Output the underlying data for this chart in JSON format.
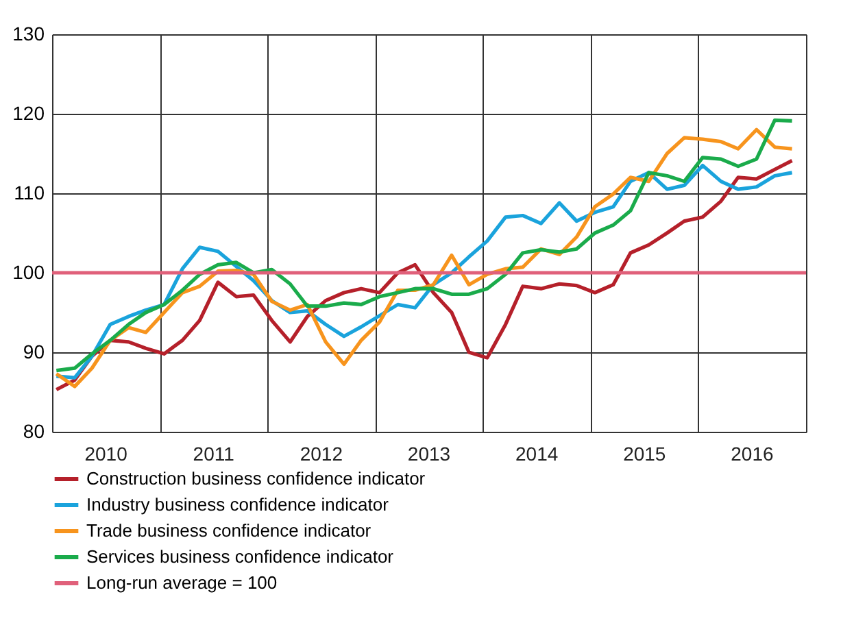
{
  "chart_data": {
    "type": "line",
    "x": [
      2010.04,
      2010.21,
      2010.37,
      2010.54,
      2010.71,
      2010.87,
      2011.04,
      2011.21,
      2011.37,
      2011.54,
      2011.71,
      2011.87,
      2012.04,
      2012.21,
      2012.37,
      2012.54,
      2012.71,
      2012.87,
      2013.04,
      2013.21,
      2013.37,
      2013.54,
      2013.71,
      2013.87,
      2014.04,
      2014.21,
      2014.37,
      2014.54,
      2014.71,
      2014.87,
      2015.04,
      2015.21,
      2015.37,
      2015.54,
      2015.71,
      2015.87,
      2016.04,
      2016.21,
      2016.37,
      2016.54,
      2016.71,
      2016.87
    ],
    "series": [
      {
        "name": "Construction business confidence indicator",
        "color": "#b5202a",
        "values": [
          85.3,
          86.5,
          89.5,
          91.5,
          91.3,
          90.5,
          89.8,
          91.5,
          94,
          98.8,
          97,
          97.2,
          94,
          91.3,
          94.5,
          96.5,
          97.5,
          98,
          97.5,
          100,
          101,
          97.5,
          95,
          90,
          89.3,
          93.5,
          98.3,
          98,
          98.6,
          98.4,
          97.5,
          98.5,
          102.5,
          103.5,
          105,
          106.5,
          107,
          109,
          112,
          111.8,
          113,
          114.1
        ]
      },
      {
        "name": "Industry business confidence indicator",
        "color": "#1aa3dc",
        "values": [
          87,
          86.8,
          89.5,
          93.5,
          94.5,
          95.3,
          96,
          100.5,
          103.2,
          102.7,
          100.8,
          99,
          96.5,
          95,
          95.2,
          93.5,
          92,
          93.2,
          94.6,
          96,
          95.6,
          98.5,
          100,
          102,
          104,
          107,
          107.2,
          106.2,
          108.8,
          106.5,
          107.6,
          108.3,
          111.5,
          112.6,
          110.5,
          111,
          113.5,
          111.5,
          110.5,
          110.8,
          112.2,
          112.6
        ]
      },
      {
        "name": "Trade business confidence indicator",
        "color": "#f7941d",
        "values": [
          87.3,
          85.7,
          88,
          91.5,
          93.1,
          92.5,
          95,
          97.5,
          98.3,
          100.2,
          100.3,
          99.8,
          96.4,
          95.3,
          96,
          91.3,
          88.5,
          91.5,
          93.8,
          97.8,
          97.8,
          98.5,
          102.2,
          98.5,
          99.8,
          100.5,
          100.7,
          103,
          102.3,
          104.5,
          108.3,
          109.9,
          112,
          111.5,
          115,
          117,
          116.8,
          116.5,
          115.6,
          118,
          115.8,
          115.6
        ]
      },
      {
        "name": "Services business confidence indicator",
        "color": "#1aab4b",
        "values": [
          87.7,
          88,
          89.8,
          91.5,
          93.5,
          95,
          96,
          97.8,
          99.8,
          101,
          101.3,
          100,
          100.4,
          98.6,
          95.8,
          95.8,
          96.2,
          96,
          97,
          97.5,
          98,
          98,
          97.3,
          97.3,
          98,
          99.8,
          102.5,
          102.9,
          102.6,
          103,
          105,
          106,
          107.8,
          112.6,
          112.2,
          111.5,
          114.5,
          114.3,
          113.4,
          114.3,
          119.2,
          119.1
        ]
      }
    ],
    "ref_lines": [
      {
        "axis": "y",
        "value": 100,
        "label": "Long-run average = 100",
        "color": "#e0607a"
      }
    ],
    "xlim": [
      2010,
      2017
    ],
    "xticks": [
      {
        "value": 2010,
        "label": null
      },
      {
        "value": 2010.5,
        "label": "2010"
      },
      {
        "value": 2011,
        "label": null
      },
      {
        "value": 2011.5,
        "label": "2011"
      },
      {
        "value": 2012,
        "label": null
      },
      {
        "value": 2012.5,
        "label": "2012"
      },
      {
        "value": 2013,
        "label": null
      },
      {
        "value": 2013.5,
        "label": "2013"
      },
      {
        "value": 2014,
        "label": null
      },
      {
        "value": 2014.5,
        "label": "2014"
      },
      {
        "value": 2015,
        "label": null
      },
      {
        "value": 2015.5,
        "label": "2015"
      },
      {
        "value": 2016,
        "label": null
      },
      {
        "value": 2016.5,
        "label": "2016"
      },
      {
        "value": 2017,
        "label": null
      }
    ],
    "ylim": [
      80,
      130
    ],
    "yticks": [
      80,
      90,
      100,
      110,
      120,
      130
    ],
    "grid": true,
    "legend": "bottom",
    "marker": "none",
    "line_style": "solid"
  }
}
